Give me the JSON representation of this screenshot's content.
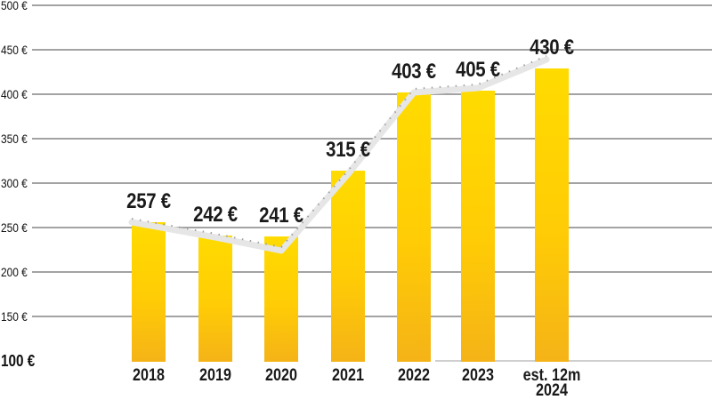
{
  "chart_data": {
    "type": "bar",
    "title": "",
    "xlabel": "",
    "ylabel": "",
    "unit": "€",
    "categories": [
      "2018",
      "2019",
      "2020",
      "2021",
      "2022",
      "2023",
      "est. 12m\n2024"
    ],
    "values": [
      257,
      242,
      241,
      315,
      403,
      405,
      430
    ],
    "value_labels": [
      "257 €",
      "242 €",
      "241 €",
      "315 €",
      "403 €",
      "405 €",
      "430 €"
    ],
    "ylim": [
      100,
      500
    ],
    "y_tick_step": 50,
    "y_ticks": [
      {
        "value": 500,
        "label": "500 €",
        "emphasis": false
      },
      {
        "value": 450,
        "label": "450 €",
        "emphasis": false
      },
      {
        "value": 400,
        "label": "400 €",
        "emphasis": false
      },
      {
        "value": 350,
        "label": "350 €",
        "emphasis": false
      },
      {
        "value": 300,
        "label": "300 €",
        "emphasis": false
      },
      {
        "value": 250,
        "label": "250 €",
        "emphasis": false
      },
      {
        "value": 200,
        "label": "200 €",
        "emphasis": false
      },
      {
        "value": 150,
        "label": "150 €",
        "emphasis": false
      },
      {
        "value": 100,
        "label": "100 €",
        "emphasis": true
      }
    ],
    "grid": true,
    "legend": "none",
    "overlay_line": {
      "present": true,
      "follows_values": true,
      "style": "thick-light-gray-with-dotted-edge"
    },
    "colors": {
      "bar_gradient_top": "#FFDB00",
      "bar_gradient_mid": "#FFCC05",
      "bar_gradient_bottom": "#F5B317",
      "trend_line": "#E6E6E6",
      "trend_line_dots": "#A0A0A0",
      "gridline": "#A3A3A3",
      "gridline_baseline_partial": "#CFCFCF",
      "text": "#1A1A1A",
      "background": "#FFFFFF"
    }
  }
}
